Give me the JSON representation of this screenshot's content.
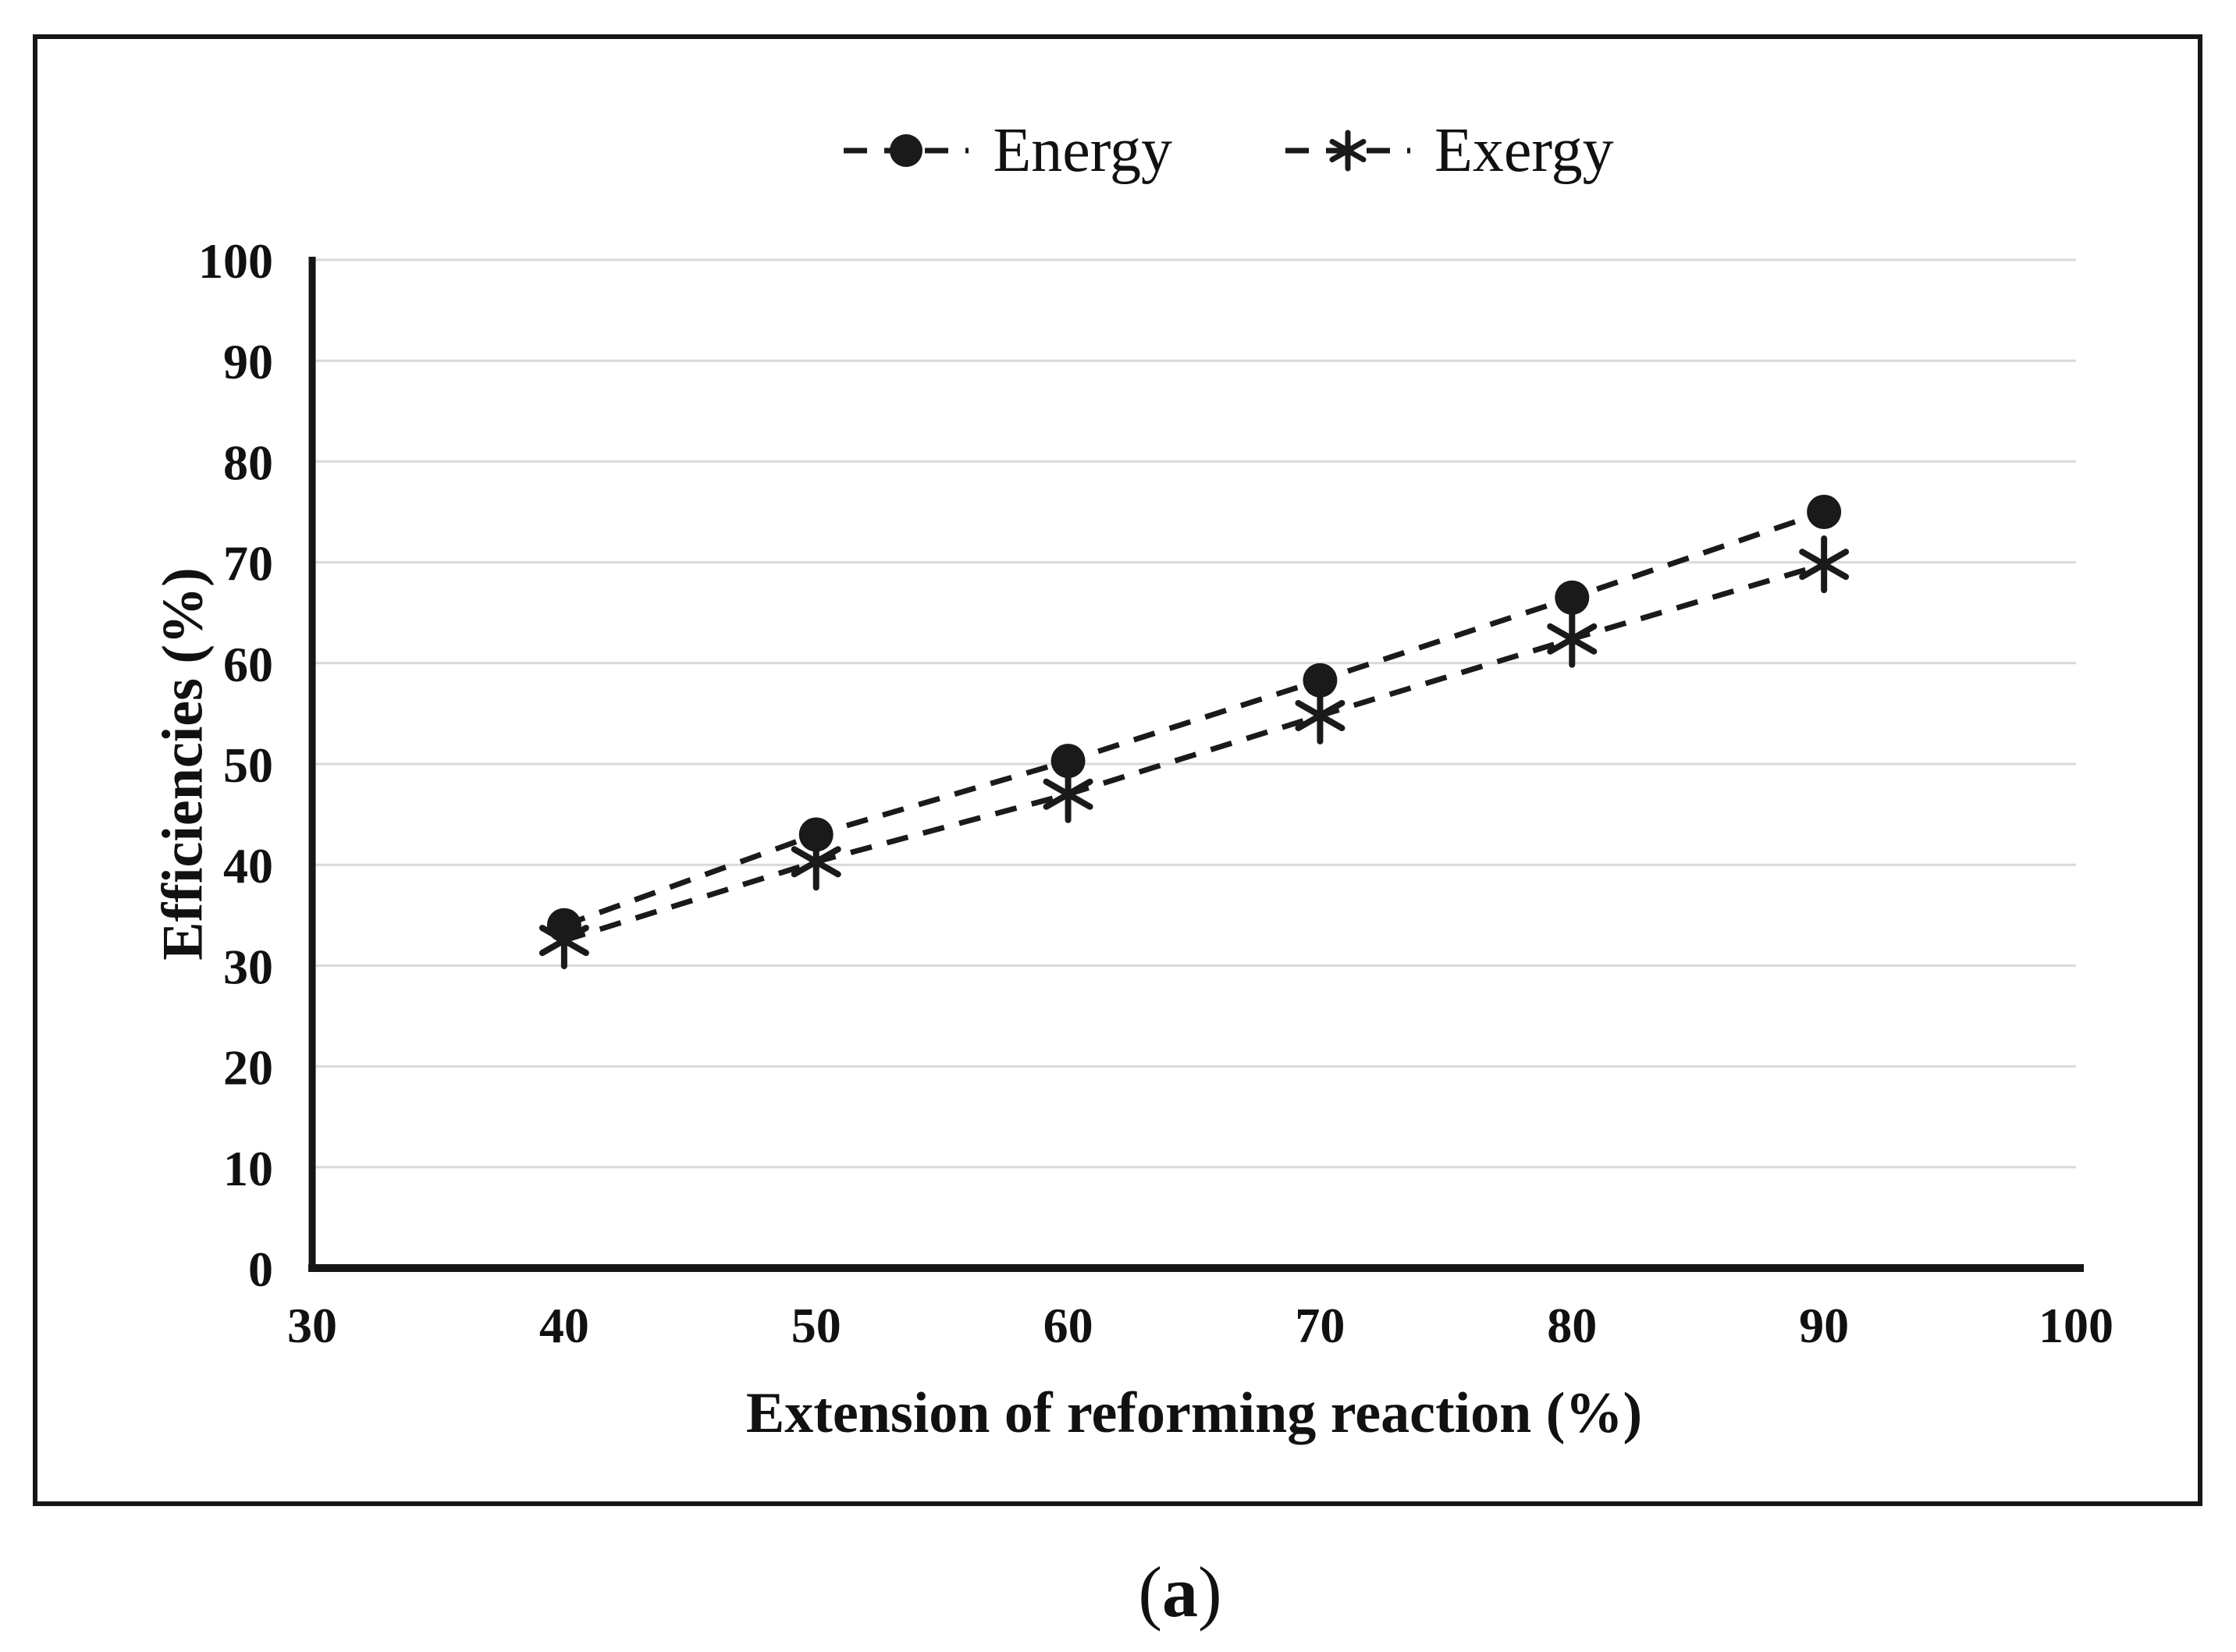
{
  "caption": {
    "open": "(",
    "letter": "a",
    "close": ")",
    "text": "(a)"
  },
  "legend": {
    "items": [
      {
        "label": "Energy",
        "marker": "filled-circle"
      },
      {
        "label": "Exergy",
        "marker": "asterisk"
      }
    ]
  },
  "chart_data": {
    "type": "line",
    "title": "",
    "xlabel": "Extension of reforming reaction (%)",
    "ylabel": "Efficiencies (%)",
    "x": [
      40,
      50,
      60,
      70,
      80,
      90
    ],
    "series": [
      {
        "name": "Energy",
        "marker": "filled-circle",
        "line_style": "dashed",
        "values": [
          34.0,
          43.0,
          50.3,
          58.3,
          66.5,
          75.0
        ]
      },
      {
        "name": "Exergy",
        "marker": "asterisk",
        "line_style": "dashed",
        "values": [
          32.5,
          40.3,
          47.0,
          54.8,
          62.4,
          69.8
        ]
      }
    ],
    "xlim": [
      30,
      100
    ],
    "ylim": [
      0,
      100
    ],
    "x_ticks": [
      30,
      40,
      50,
      60,
      70,
      80,
      90,
      100
    ],
    "y_ticks": [
      0,
      10,
      20,
      30,
      40,
      50,
      60,
      70,
      80,
      90,
      100
    ],
    "grid": "horizontal",
    "legend_position": "top-center",
    "colors": {
      "series": "#1a1a1a",
      "gridline": "#d9d9d9",
      "axis": "#161616",
      "background": "#ffffff",
      "text": "#111111"
    }
  }
}
